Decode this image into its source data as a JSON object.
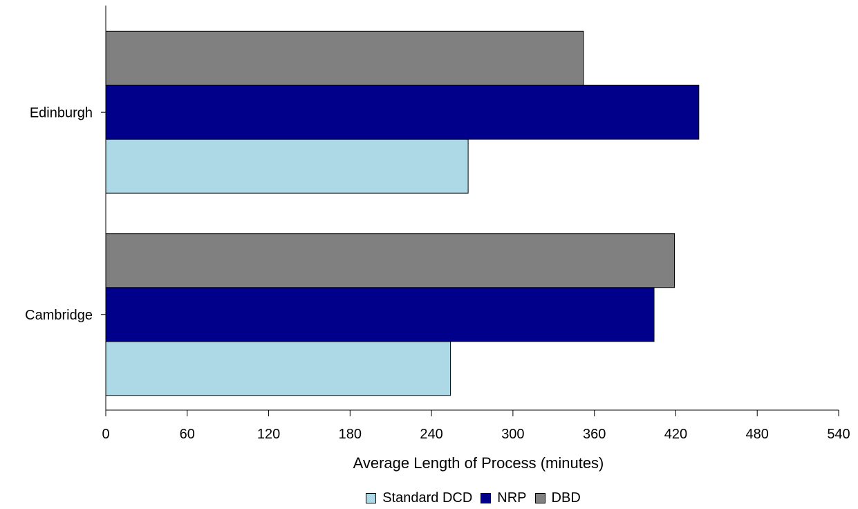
{
  "chart_data": {
    "type": "bar",
    "orientation": "horizontal",
    "categories": [
      "Edinburgh",
      "Cambridge"
    ],
    "series": [
      {
        "name": "Standard DCD",
        "color": "#add8e6",
        "values": [
          267,
          254
        ]
      },
      {
        "name": "NRP",
        "color": "#00008b",
        "values": [
          437,
          404
        ]
      },
      {
        "name": "DBD",
        "color": "#808080",
        "values": [
          352,
          419
        ]
      }
    ],
    "xlabel": "Average Length of Process (minutes)",
    "ylabel": "",
    "xlim": [
      0,
      540
    ],
    "xticks": [
      "0",
      "60",
      "120",
      "180",
      "240",
      "300",
      "360",
      "420",
      "480",
      "540"
    ],
    "legend_position": "bottom",
    "grid": false
  }
}
